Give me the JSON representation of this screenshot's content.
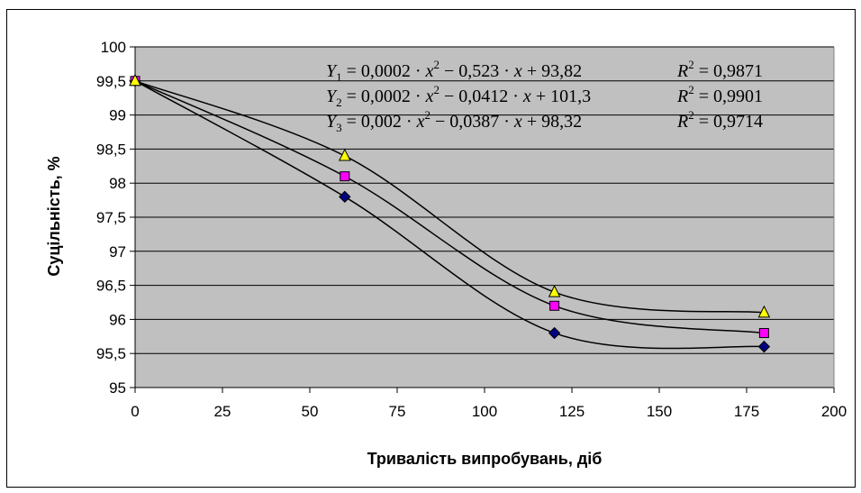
{
  "chart_data": {
    "type": "scatter",
    "xlabel": "Тривалість випробувань, діб",
    "ylabel": "Суцільність, %",
    "xlim": [
      0,
      200
    ],
    "ylim": [
      95,
      100
    ],
    "xticks": [
      0,
      25,
      50,
      75,
      100,
      125,
      150,
      175,
      200
    ],
    "xtick_labels": [
      "0",
      "25",
      "50",
      "75",
      "100",
      "125",
      "150",
      "175",
      "200"
    ],
    "yticks": [
      95,
      95.5,
      96,
      96.5,
      97,
      97.5,
      98,
      98.5,
      99,
      99.5,
      100
    ],
    "ytick_labels": [
      "95",
      "95,5",
      "96",
      "96,5",
      "97",
      "97,5",
      "98",
      "98,5",
      "99",
      "99,5",
      "100"
    ],
    "grid": "horizontal",
    "plot_background": "#c0c0c0",
    "series": [
      {
        "marker": "diamond",
        "color": "#000080",
        "x": [
          0,
          60,
          120,
          180
        ],
        "values": [
          99.5,
          97.8,
          95.8,
          95.6
        ]
      },
      {
        "marker": "square",
        "color": "#ff00ff",
        "x": [
          0,
          60,
          120,
          180
        ],
        "values": [
          99.5,
          98.1,
          96.2,
          95.8
        ]
      },
      {
        "marker": "triangle",
        "color": "#ffff00",
        "x": [
          0,
          60,
          120,
          180
        ],
        "values": [
          99.5,
          98.4,
          96.4,
          96.1
        ]
      }
    ],
    "annotations": [
      {
        "lhs_var": "Y",
        "lhs_sub": "1",
        "rhs": {
          "a": "0,0002",
          "op1": "−",
          "b": "0,523",
          "op2": "+",
          "c": "93,82"
        },
        "r2_label": "R",
        "r2_value": "0,9871"
      },
      {
        "lhs_var": "Y",
        "lhs_sub": "2",
        "rhs": {
          "a": "0,0002",
          "op1": "−",
          "b": "0,0412",
          "op2": "+",
          "c": "101,3"
        },
        "r2_label": "R",
        "r2_value": "0,9901"
      },
      {
        "lhs_var": "Y",
        "lhs_sub": "3",
        "rhs": {
          "a": "0,002",
          "op1": "−",
          "b": "0,0387",
          "op2": "+",
          "c": "98,32"
        },
        "r2_label": "R",
        "r2_value": "0,9714"
      }
    ],
    "equation_symbols": {
      "x": "x",
      "dot": "·",
      "equals": "=",
      "power": "2"
    }
  }
}
